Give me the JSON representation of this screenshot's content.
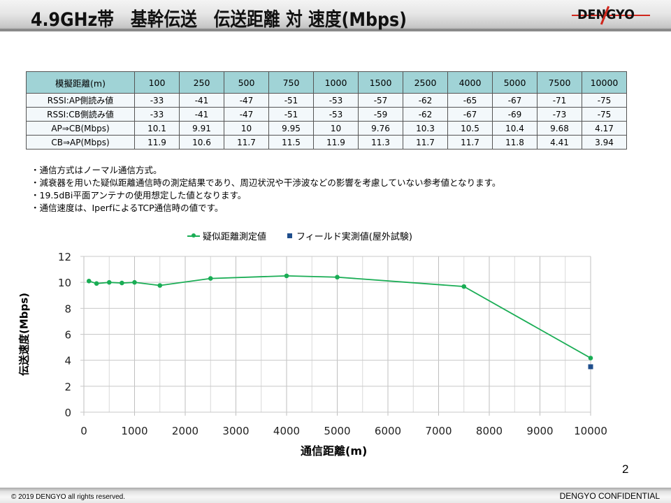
{
  "header": {
    "title": "4.9GHz帯　基幹伝送　伝送距離 対 速度(Mbps)",
    "logo_text": "DENGYO"
  },
  "table": {
    "header_label": "模擬距離(m)",
    "distances": [
      "100",
      "250",
      "500",
      "750",
      "1000",
      "1500",
      "2500",
      "4000",
      "5000",
      "7500",
      "10000"
    ],
    "rows": [
      {
        "label": "RSSI:AP側読み値",
        "values": [
          "-33",
          "-41",
          "-47",
          "-51",
          "-53",
          "-57",
          "-62",
          "-65",
          "-67",
          "-71",
          "-75"
        ]
      },
      {
        "label": "RSSI:CB側読み値",
        "values": [
          "-33",
          "-41",
          "-47",
          "-51",
          "-53",
          "-59",
          "-62",
          "-67",
          "-69",
          "-73",
          "-75"
        ]
      },
      {
        "label": "AP⇒CB(Mbps)",
        "values": [
          "10.1",
          "9.91",
          "10",
          "9.95",
          "10",
          "9.76",
          "10.3",
          "10.5",
          "10.4",
          "9.68",
          "4.17"
        ]
      },
      {
        "label": "CB⇒AP(Mbps)",
        "values": [
          "11.9",
          "10.6",
          "11.7",
          "11.5",
          "11.9",
          "11.3",
          "11.7",
          "11.7",
          "11.8",
          "4.41",
          "3.94"
        ]
      }
    ]
  },
  "notes": [
    "・通信方式はノーマル通信方式。",
    "・減衰器を用いた疑似距離通信時の測定結果であり、周辺状況や干渉波などの影響を考慮していない参考値となります。",
    "・19.5dBi平面アンテナの使用想定した値となります。",
    "・通信速度は、IperfによるTCP通信時の値です。"
  ],
  "colors": {
    "series_line": "#1aad55",
    "series_field": "#1f4e8c",
    "table_header_bg": "#a0d3d6"
  },
  "chart_data": {
    "type": "line",
    "title": "",
    "xlabel": "通信距離(m)",
    "ylabel": "伝送速度(Mbps)",
    "xlim": [
      0,
      10000
    ],
    "ylim": [
      0,
      12
    ],
    "xticks": [
      "0",
      "1000",
      "2000",
      "3000",
      "4000",
      "5000",
      "6000",
      "7000",
      "8000",
      "9000",
      "10000"
    ],
    "yticks": [
      "0",
      "2",
      "4",
      "6",
      "8",
      "10",
      "12"
    ],
    "grid": true,
    "legend_position": "top",
    "series": [
      {
        "name": "疑似距離測定値",
        "style": "line-marker",
        "x": [
          100,
          250,
          500,
          750,
          1000,
          1500,
          2500,
          4000,
          5000,
          7500,
          10000
        ],
        "values": [
          10.1,
          9.91,
          10,
          9.95,
          10,
          9.76,
          10.3,
          10.5,
          10.4,
          9.68,
          4.17
        ]
      },
      {
        "name": "フィールド実測値(屋外試験)",
        "style": "square-marker",
        "x": [
          10000
        ],
        "values": [
          3.5
        ]
      }
    ]
  },
  "page_number": "2",
  "footer": {
    "copyright": "© 2019 DENGYO  all rights reserved.",
    "confidential": "DENGYO CONFIDENTIAL"
  }
}
